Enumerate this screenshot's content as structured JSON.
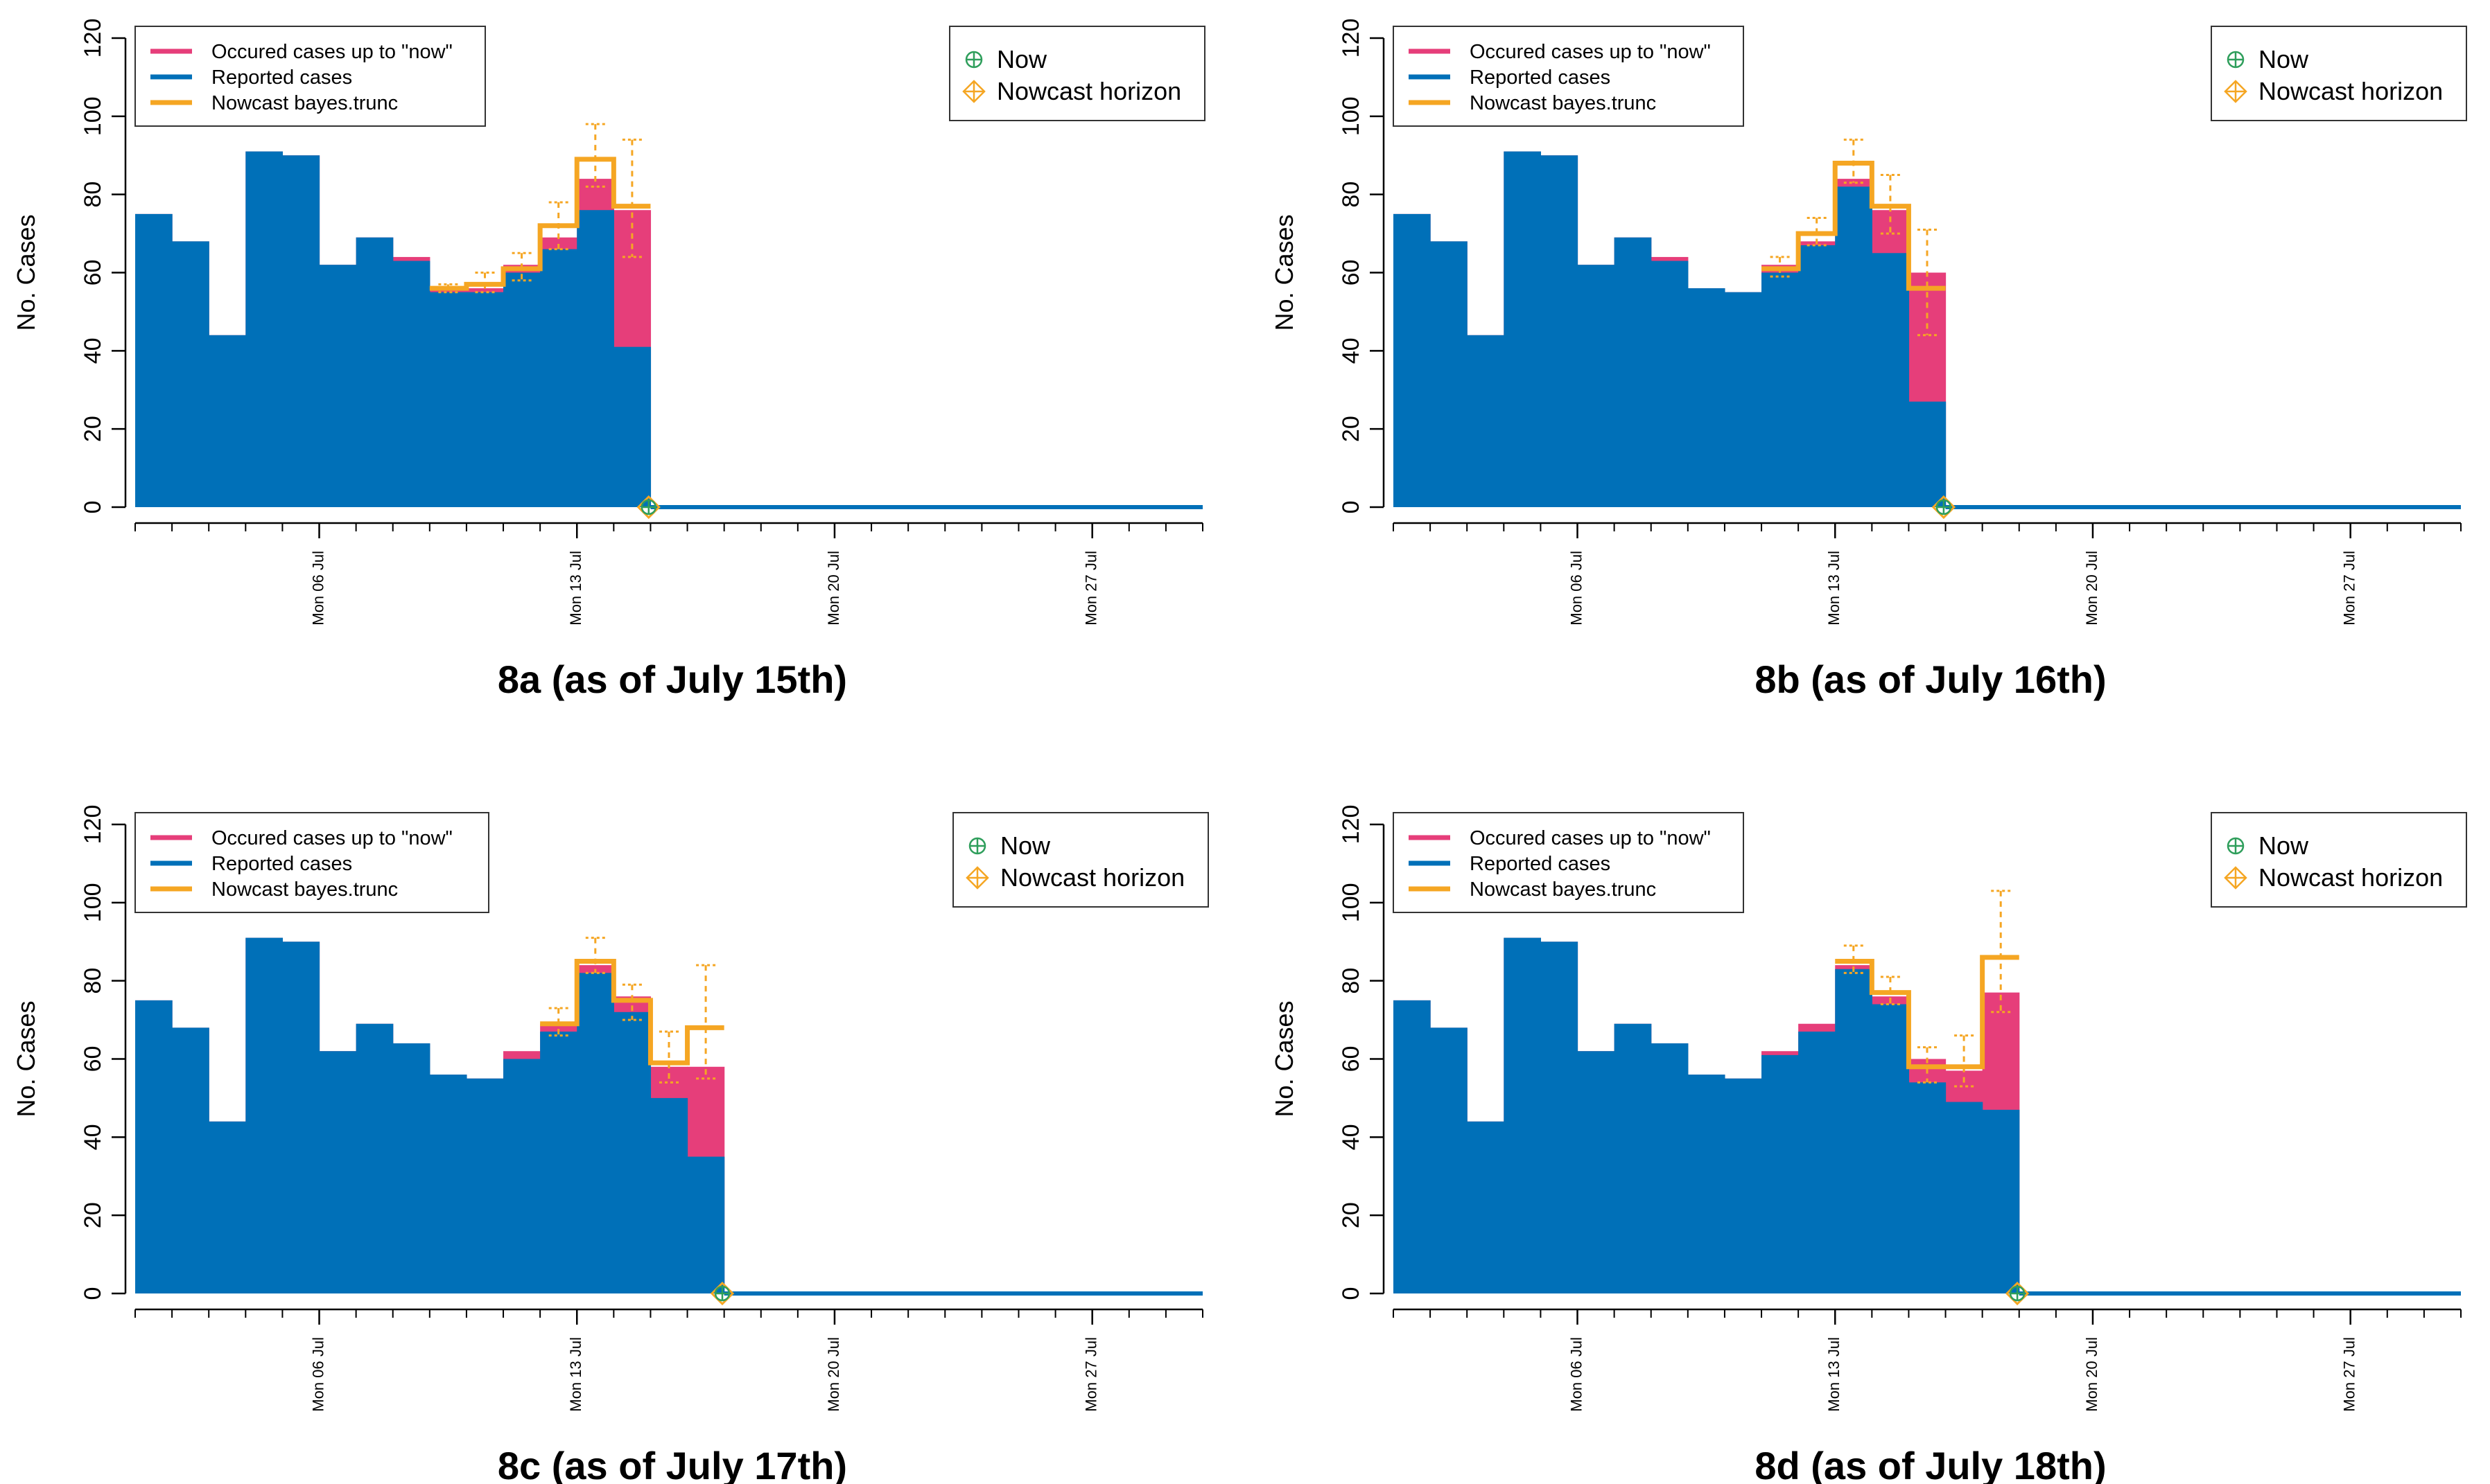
{
  "figure": {
    "panels_count": 4
  },
  "colors": {
    "reported": "#0070B8",
    "occurred": "#E63E7A",
    "nowcast": "#F5A623",
    "now_marker": "#2E9E5B",
    "horizon_marker": "#F5A623",
    "axis": "#000000"
  },
  "legend_left": {
    "items": [
      {
        "label": "Occured cases up to \"now\"",
        "color": "#E63E7A"
      },
      {
        "label": "Reported cases",
        "color": "#0070B8"
      },
      {
        "label": "Nowcast bayes.trunc",
        "color": "#F5A623"
      }
    ]
  },
  "legend_right": {
    "items": [
      {
        "label": "Now",
        "icon": "circle-plus-icon",
        "color": "#2E9E5B"
      },
      {
        "label": "Nowcast horizon",
        "icon": "diamond-plus-icon",
        "color": "#F5A623"
      }
    ]
  },
  "chart_data": [
    {
      "type": "area",
      "title": "8a (as of July 15th)",
      "xlabel": "",
      "ylabel": "No. Cases",
      "ylim": [
        0,
        120
      ],
      "yticks": [
        0,
        20,
        40,
        60,
        80,
        100,
        120
      ],
      "xlim": [
        "2020-07-01",
        "2020-07-30"
      ],
      "xticks": [
        {
          "date": "2020-07-06",
          "label": "Mon 06 Jul"
        },
        {
          "date": "2020-07-13",
          "label": "Mon 13 Jul"
        },
        {
          "date": "2020-07-20",
          "label": "Mon 20 Jul"
        },
        {
          "date": "2020-07-27",
          "label": "Mon 27 Jul"
        }
      ],
      "grid": false,
      "legend": "top-left and top-right",
      "series": [
        {
          "name": "Reported cases",
          "x": [
            "2020-07-01",
            "2020-07-02",
            "2020-07-03",
            "2020-07-04",
            "2020-07-05",
            "2020-07-06",
            "2020-07-07",
            "2020-07-08",
            "2020-07-09",
            "2020-07-10",
            "2020-07-11",
            "2020-07-12",
            "2020-07-13",
            "2020-07-14",
            "2020-07-15"
          ],
          "values": [
            75,
            68,
            44,
            91,
            90,
            62,
            69,
            63,
            55,
            55,
            60,
            66,
            76,
            41,
            0
          ]
        },
        {
          "name": "Occured cases up to \"now\"",
          "x": [
            "2020-07-01",
            "2020-07-02",
            "2020-07-03",
            "2020-07-04",
            "2020-07-05",
            "2020-07-06",
            "2020-07-07",
            "2020-07-08",
            "2020-07-09",
            "2020-07-10",
            "2020-07-11",
            "2020-07-12",
            "2020-07-13",
            "2020-07-14",
            "2020-07-15"
          ],
          "values": [
            75,
            68,
            44,
            91,
            90,
            62,
            69,
            64,
            56,
            56,
            62,
            69,
            84,
            76,
            0
          ]
        },
        {
          "name": "Nowcast bayes.trunc",
          "x": [
            "2020-07-09",
            "2020-07-10",
            "2020-07-11",
            "2020-07-12",
            "2020-07-13",
            "2020-07-14"
          ],
          "values": [
            56,
            57,
            61,
            72,
            89,
            77
          ],
          "lower": [
            55,
            55,
            58,
            66,
            82,
            64
          ],
          "upper": [
            57,
            60,
            65,
            78,
            98,
            94
          ]
        }
      ],
      "now": "2020-07-15",
      "nowcast_horizon": "2020-07-15"
    },
    {
      "type": "area",
      "title": "8b (as of July 16th)",
      "xlabel": "",
      "ylabel": "No. Cases",
      "ylim": [
        0,
        120
      ],
      "yticks": [
        0,
        20,
        40,
        60,
        80,
        100,
        120
      ],
      "xlim": [
        "2020-07-01",
        "2020-07-30"
      ],
      "xticks": [
        {
          "date": "2020-07-06",
          "label": "Mon 06 Jul"
        },
        {
          "date": "2020-07-13",
          "label": "Mon 13 Jul"
        },
        {
          "date": "2020-07-20",
          "label": "Mon 20 Jul"
        },
        {
          "date": "2020-07-27",
          "label": "Mon 27 Jul"
        }
      ],
      "grid": false,
      "legend": "top-left and top-right",
      "series": [
        {
          "name": "Reported cases",
          "x": [
            "2020-07-01",
            "2020-07-02",
            "2020-07-03",
            "2020-07-04",
            "2020-07-05",
            "2020-07-06",
            "2020-07-07",
            "2020-07-08",
            "2020-07-09",
            "2020-07-10",
            "2020-07-11",
            "2020-07-12",
            "2020-07-13",
            "2020-07-14",
            "2020-07-15",
            "2020-07-16"
          ],
          "values": [
            75,
            68,
            44,
            91,
            90,
            62,
            69,
            63,
            56,
            55,
            60,
            67,
            82,
            65,
            27,
            0
          ]
        },
        {
          "name": "Occured cases up to \"now\"",
          "x": [
            "2020-07-01",
            "2020-07-02",
            "2020-07-03",
            "2020-07-04",
            "2020-07-05",
            "2020-07-06",
            "2020-07-07",
            "2020-07-08",
            "2020-07-09",
            "2020-07-10",
            "2020-07-11",
            "2020-07-12",
            "2020-07-13",
            "2020-07-14",
            "2020-07-15",
            "2020-07-16"
          ],
          "values": [
            75,
            68,
            44,
            91,
            90,
            62,
            69,
            64,
            56,
            55,
            62,
            68,
            84,
            76,
            60,
            0
          ]
        },
        {
          "name": "Nowcast bayes.trunc",
          "x": [
            "2020-07-11",
            "2020-07-12",
            "2020-07-13",
            "2020-07-14",
            "2020-07-15"
          ],
          "values": [
            61,
            70,
            88,
            77,
            56
          ],
          "lower": [
            59,
            67,
            83,
            70,
            44
          ],
          "upper": [
            64,
            74,
            94,
            85,
            71
          ]
        }
      ],
      "now": "2020-07-16",
      "nowcast_horizon": "2020-07-16"
    },
    {
      "type": "area",
      "title": "8c (as of July 17th)",
      "xlabel": "",
      "ylabel": "No. Cases",
      "ylim": [
        0,
        120
      ],
      "yticks": [
        0,
        20,
        40,
        60,
        80,
        100,
        120
      ],
      "xlim": [
        "2020-07-01",
        "2020-07-30"
      ],
      "xticks": [
        {
          "date": "2020-07-06",
          "label": "Mon 06 Jul"
        },
        {
          "date": "2020-07-13",
          "label": "Mon 13 Jul"
        },
        {
          "date": "2020-07-20",
          "label": "Mon 20 Jul"
        },
        {
          "date": "2020-07-27",
          "label": "Mon 27 Jul"
        }
      ],
      "grid": false,
      "legend": "top-left and top-right",
      "series": [
        {
          "name": "Reported cases",
          "x": [
            "2020-07-01",
            "2020-07-02",
            "2020-07-03",
            "2020-07-04",
            "2020-07-05",
            "2020-07-06",
            "2020-07-07",
            "2020-07-08",
            "2020-07-09",
            "2020-07-10",
            "2020-07-11",
            "2020-07-12",
            "2020-07-13",
            "2020-07-14",
            "2020-07-15",
            "2020-07-16",
            "2020-07-17"
          ],
          "values": [
            75,
            68,
            44,
            91,
            90,
            62,
            69,
            64,
            56,
            55,
            60,
            67,
            82,
            72,
            50,
            35,
            0
          ]
        },
        {
          "name": "Occured cases up to \"now\"",
          "x": [
            "2020-07-01",
            "2020-07-02",
            "2020-07-03",
            "2020-07-04",
            "2020-07-05",
            "2020-07-06",
            "2020-07-07",
            "2020-07-08",
            "2020-07-09",
            "2020-07-10",
            "2020-07-11",
            "2020-07-12",
            "2020-07-13",
            "2020-07-14",
            "2020-07-15",
            "2020-07-16",
            "2020-07-17"
          ],
          "values": [
            75,
            68,
            44,
            91,
            90,
            62,
            69,
            64,
            56,
            55,
            62,
            69,
            84,
            76,
            58,
            58,
            0
          ]
        },
        {
          "name": "Nowcast bayes.trunc",
          "x": [
            "2020-07-12",
            "2020-07-13",
            "2020-07-14",
            "2020-07-15",
            "2020-07-16"
          ],
          "values": [
            69,
            85,
            75,
            59,
            68
          ],
          "lower": [
            66,
            82,
            70,
            54,
            55
          ],
          "upper": [
            73,
            91,
            79,
            67,
            84
          ]
        }
      ],
      "now": "2020-07-17",
      "nowcast_horizon": "2020-07-17"
    },
    {
      "type": "area",
      "title": "8d (as of July 18th)",
      "xlabel": "",
      "ylabel": "No. Cases",
      "ylim": [
        0,
        120
      ],
      "yticks": [
        0,
        20,
        40,
        60,
        80,
        100,
        120
      ],
      "xlim": [
        "2020-07-01",
        "2020-07-30"
      ],
      "xticks": [
        {
          "date": "2020-07-06",
          "label": "Mon 06 Jul"
        },
        {
          "date": "2020-07-13",
          "label": "Mon 13 Jul"
        },
        {
          "date": "2020-07-20",
          "label": "Mon 20 Jul"
        },
        {
          "date": "2020-07-27",
          "label": "Mon 27 Jul"
        }
      ],
      "grid": false,
      "legend": "top-left and top-right",
      "series": [
        {
          "name": "Reported cases",
          "x": [
            "2020-07-01",
            "2020-07-02",
            "2020-07-03",
            "2020-07-04",
            "2020-07-05",
            "2020-07-06",
            "2020-07-07",
            "2020-07-08",
            "2020-07-09",
            "2020-07-10",
            "2020-07-11",
            "2020-07-12",
            "2020-07-13",
            "2020-07-14",
            "2020-07-15",
            "2020-07-16",
            "2020-07-17",
            "2020-07-18"
          ],
          "values": [
            75,
            68,
            44,
            91,
            90,
            62,
            69,
            64,
            56,
            55,
            61,
            67,
            83,
            74,
            54,
            49,
            47,
            0
          ]
        },
        {
          "name": "Occured cases up to \"now\"",
          "x": [
            "2020-07-01",
            "2020-07-02",
            "2020-07-03",
            "2020-07-04",
            "2020-07-05",
            "2020-07-06",
            "2020-07-07",
            "2020-07-08",
            "2020-07-09",
            "2020-07-10",
            "2020-07-11",
            "2020-07-12",
            "2020-07-13",
            "2020-07-14",
            "2020-07-15",
            "2020-07-16",
            "2020-07-17",
            "2020-07-18"
          ],
          "values": [
            75,
            68,
            44,
            91,
            90,
            62,
            69,
            64,
            56,
            55,
            62,
            69,
            84,
            76,
            60,
            57,
            77,
            0
          ]
        },
        {
          "name": "Nowcast bayes.trunc",
          "x": [
            "2020-07-13",
            "2020-07-14",
            "2020-07-15",
            "2020-07-16",
            "2020-07-17"
          ],
          "values": [
            85,
            77,
            58,
            58,
            86
          ],
          "lower": [
            82,
            74,
            54,
            53,
            72
          ],
          "upper": [
            89,
            81,
            63,
            66,
            103
          ]
        }
      ],
      "now": "2020-07-18",
      "nowcast_horizon": "2020-07-18"
    }
  ]
}
